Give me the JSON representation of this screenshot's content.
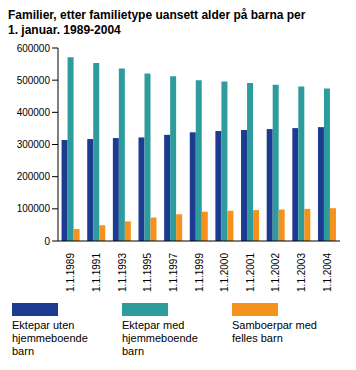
{
  "chart_data": {
    "type": "bar",
    "title": "Familier, etter familietype uansett alder på barna per 1. januar. 1989-2004",
    "categories": [
      "1.1.1989",
      "1.1.1991",
      "1.1.1993",
      "1.1.1995",
      "1.1.1997",
      "1.1.1999",
      "1.1.2000",
      "1.1.2001",
      "1.1.2002",
      "1.1.2003",
      "1.1.2004"
    ],
    "series": [
      {
        "name": "Ektepar uten hjemmeboende barn",
        "color": "#1d3c91",
        "values": [
          314000,
          317000,
          320000,
          322000,
          330000,
          338000,
          342000,
          345000,
          348000,
          351000,
          354000
        ]
      },
      {
        "name": "Ektepar med hjemmeboende barn",
        "color": "#2e9c9c",
        "values": [
          571000,
          553000,
          536000,
          521000,
          512000,
          500000,
          496000,
          491000,
          486000,
          480000,
          474000
        ]
      },
      {
        "name": "Samboerpar med felles barn",
        "color": "#f5921e",
        "values": [
          37000,
          49000,
          61000,
          73000,
          83000,
          91000,
          94000,
          96000,
          98000,
          100000,
          102000
        ]
      }
    ],
    "ylim": [
      0,
      600000
    ],
    "yticks": [
      0,
      100000,
      200000,
      300000,
      400000,
      500000,
      600000
    ],
    "grid": false,
    "legend": "bottom"
  }
}
